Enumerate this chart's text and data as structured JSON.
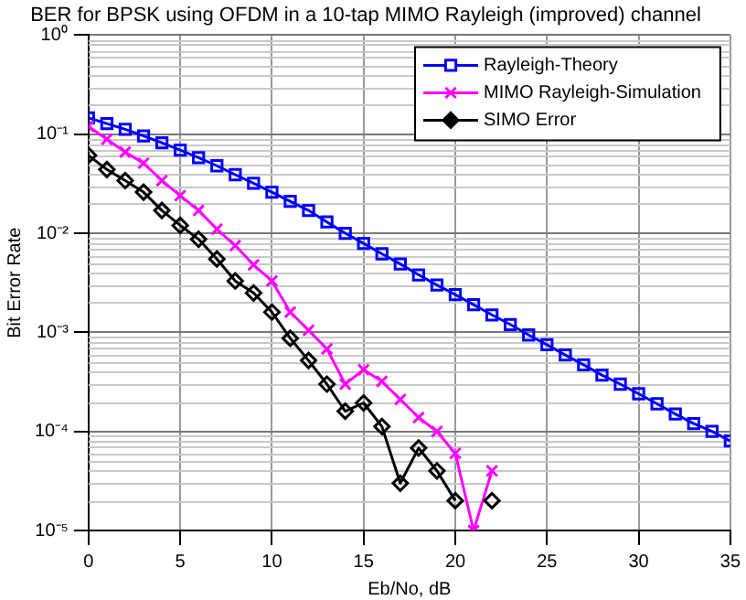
{
  "chart_data": {
    "type": "line",
    "title": "BER for BPSK using OFDM in a 10-tap MIMO Rayleigh (improved) channel",
    "xlabel": "Eb/No, dB",
    "ylabel": "Bit Error Rate",
    "x": [
      0,
      1,
      2,
      3,
      4,
      5,
      6,
      7,
      8,
      9,
      10,
      11,
      12,
      13,
      14,
      15,
      16,
      17,
      18,
      19,
      20,
      21,
      22,
      23,
      24,
      25,
      26,
      27,
      28,
      29,
      30,
      31,
      32,
      33,
      34,
      35
    ],
    "series": [
      {
        "name": "Rayleigh-Theory",
        "color": "#0000ff",
        "marker": "square",
        "values": [
          0.146,
          0.128,
          0.112,
          0.096,
          0.082,
          0.069,
          0.058,
          0.048,
          0.039,
          0.032,
          0.026,
          0.021,
          0.017,
          0.013,
          0.01,
          0.0079,
          0.0062,
          0.0049,
          0.0038,
          0.003,
          0.0024,
          0.0019,
          0.0015,
          0.0012,
          0.00094,
          0.00075,
          0.00059,
          0.00047,
          0.00037,
          0.0003,
          0.00024,
          0.00019,
          0.00015,
          0.00012,
          0.0001,
          8e-05
        ]
      },
      {
        "name": "MIMO Rayleigh-Simulation",
        "color": "#ff00ff",
        "marker": "cross",
        "values": [
          0.12,
          0.089,
          0.066,
          0.051,
          0.034,
          0.024,
          0.017,
          0.011,
          0.0075,
          0.0048,
          0.0033,
          0.0016,
          0.00105,
          0.00068,
          0.0003,
          0.00042,
          0.00032,
          0.00021,
          0.000138,
          0.0001,
          6e-05,
          1e-05,
          4e-05,
          null,
          null,
          null,
          null,
          null,
          null,
          null,
          null,
          null,
          null,
          null,
          null,
          null
        ]
      },
      {
        "name": "SIMO Error",
        "color": "#000000",
        "marker": "diamond",
        "values": [
          0.061,
          0.044,
          0.034,
          0.026,
          0.017,
          0.012,
          0.0087,
          0.0055,
          0.0033,
          0.0025,
          0.0016,
          0.00087,
          0.00052,
          0.0003,
          0.00016,
          0.000194,
          0.000112,
          3e-05,
          6.8e-05,
          4e-05,
          2e-05,
          null,
          2e-05,
          null,
          null,
          null,
          null,
          null,
          null,
          null,
          null,
          null,
          null,
          null,
          null,
          null
        ]
      }
    ],
    "xlim": [
      0,
      35
    ],
    "xticks": [
      0,
      5,
      10,
      15,
      20,
      25,
      30,
      35
    ],
    "ylim": [
      1e-05,
      1
    ],
    "yticks": [
      {
        "value": 1e-05,
        "label": "10⁻⁵"
      },
      {
        "value": 0.0001,
        "label": "10⁻⁴"
      },
      {
        "value": 0.001,
        "label": "10⁻³"
      },
      {
        "value": 0.01,
        "label": "10⁻²"
      },
      {
        "value": 0.1,
        "label": "10⁻¹"
      },
      {
        "value": 1,
        "label": "10⁰"
      }
    ],
    "log": "y",
    "grid": true,
    "legend": "top right"
  }
}
